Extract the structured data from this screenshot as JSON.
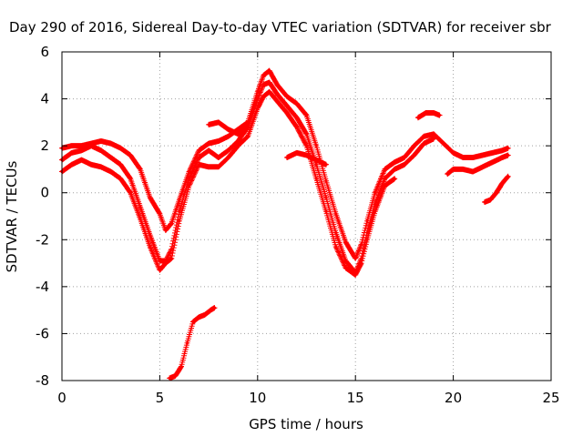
{
  "chart_data": {
    "type": "scatter",
    "title": "Day 290 of 2016, Sidereal Day-to-day VTEC variation (SDTVAR) for receiver sbr",
    "xlabel": "GPS time / hours",
    "ylabel": "SDTVAR / TECUs",
    "xlim": [
      0,
      25
    ],
    "ylim": [
      -8,
      6
    ],
    "xticks": [
      0,
      5,
      10,
      15,
      20,
      25
    ],
    "yticks": [
      -8,
      -6,
      -4,
      -2,
      0,
      2,
      4,
      6
    ],
    "grid": true,
    "legend": "none",
    "marker": "plus",
    "color": "#ff0000",
    "series": [
      {
        "x": [
          0.0,
          0.5,
          1.0,
          1.5,
          2.0,
          2.5,
          3.0,
          3.5,
          4.0,
          4.5,
          5.0,
          5.3,
          5.6,
          6.0,
          6.5,
          7.0,
          7.5,
          8.0,
          8.5,
          9.0,
          9.5,
          10.0,
          10.3,
          10.6,
          11.0,
          11.5,
          12.0,
          12.5,
          13.0,
          13.5,
          14.0,
          14.5,
          15.0,
          15.3,
          15.6,
          16.0,
          16.5,
          17.0,
          17.5,
          18.0,
          18.5,
          19.0,
          19.5,
          20.0,
          20.5,
          21.0,
          21.5,
          22.0,
          22.5,
          22.8
        ],
        "y": [
          1.9,
          2.0,
          2.0,
          2.1,
          2.2,
          2.1,
          1.9,
          1.6,
          1.0,
          -0.2,
          -0.9,
          -1.6,
          -1.3,
          -0.3,
          0.9,
          1.8,
          2.1,
          2.2,
          2.4,
          2.7,
          3.0,
          4.3,
          5.0,
          5.2,
          4.6,
          4.1,
          3.8,
          3.3,
          2.0,
          0.5,
          -0.9,
          -2.1,
          -2.8,
          -2.2,
          -1.2,
          0.0,
          1.0,
          1.3,
          1.5,
          2.0,
          2.4,
          2.5,
          2.1,
          1.7,
          1.5,
          1.5,
          1.6,
          1.7,
          1.8,
          1.9
        ]
      },
      {
        "x": [
          0.0,
          0.5,
          1.0,
          1.5,
          2.0,
          2.5,
          3.0,
          3.5,
          4.0,
          4.5,
          5.0,
          5.3,
          5.6,
          6.0,
          6.5,
          7.0,
          7.5,
          8.0,
          8.5,
          9.0,
          9.5,
          10.0,
          10.3,
          10.6,
          11.0,
          11.5,
          12.0,
          12.5,
          13.0,
          13.5,
          14.0,
          14.5,
          15.0,
          15.3,
          15.6,
          16.0,
          16.5,
          17.0,
          17.5,
          18.0,
          18.5,
          19.0
        ],
        "y": [
          1.4,
          1.7,
          1.8,
          2.0,
          1.8,
          1.5,
          1.2,
          0.6,
          -0.6,
          -1.8,
          -2.9,
          -2.9,
          -2.4,
          -0.8,
          0.6,
          1.5,
          1.8,
          1.5,
          1.8,
          2.2,
          2.8,
          4.0,
          4.6,
          4.7,
          4.2,
          3.7,
          3.2,
          2.5,
          1.2,
          -0.2,
          -1.7,
          -2.9,
          -3.4,
          -2.8,
          -1.7,
          -0.5,
          0.6,
          1.0,
          1.2,
          1.6,
          2.1,
          2.3
        ]
      },
      {
        "x": [
          0.0,
          0.5,
          1.0,
          1.5,
          2.0,
          2.5,
          3.0,
          3.5,
          4.0,
          4.5,
          5.0,
          5.3,
          5.6,
          6.0,
          6.5,
          7.0,
          7.5,
          8.0,
          8.5,
          9.0,
          9.5,
          10.0,
          10.3,
          10.6,
          11.0,
          11.5,
          12.0,
          12.5,
          13.0,
          13.5,
          14.0,
          14.5,
          15.0,
          15.3,
          15.6,
          16.0,
          16.5,
          17.0
        ],
        "y": [
          0.9,
          1.2,
          1.4,
          1.2,
          1.1,
          0.9,
          0.6,
          0.0,
          -1.1,
          -2.3,
          -3.3,
          -3.0,
          -2.8,
          -1.2,
          0.3,
          1.2,
          1.1,
          1.1,
          1.5,
          2.0,
          2.4,
          3.6,
          4.1,
          4.3,
          3.9,
          3.4,
          2.8,
          2.0,
          0.6,
          -0.8,
          -2.3,
          -3.2,
          -3.5,
          -3.0,
          -2.0,
          -0.8,
          0.3,
          0.6
        ]
      },
      {
        "x": [
          5.5,
          5.8,
          6.1,
          6.4,
          6.7,
          7.0,
          7.3,
          7.6,
          7.8
        ],
        "y": [
          -7.9,
          -7.8,
          -7.4,
          -6.4,
          -5.5,
          -5.3,
          -5.2,
          -5.0,
          -4.9
        ]
      },
      {
        "x": [
          7.5,
          8.0,
          8.5,
          9.0,
          9.5
        ],
        "y": [
          2.9,
          3.0,
          2.7,
          2.5,
          2.8
        ]
      },
      {
        "x": [
          11.5,
          12.0,
          12.5,
          13.0,
          13.5
        ],
        "y": [
          1.5,
          1.7,
          1.6,
          1.4,
          1.2
        ]
      },
      {
        "x": [
          18.2,
          18.6,
          19.0,
          19.3
        ],
        "y": [
          3.2,
          3.4,
          3.4,
          3.3
        ]
      },
      {
        "x": [
          19.7,
          20.0,
          20.5,
          21.0,
          21.5,
          22.0,
          22.5,
          22.8
        ],
        "y": [
          0.8,
          1.0,
          1.0,
          0.9,
          1.1,
          1.3,
          1.5,
          1.6
        ]
      },
      {
        "x": [
          21.6,
          21.9,
          22.2,
          22.5,
          22.8
        ],
        "y": [
          -0.4,
          -0.3,
          0.0,
          0.4,
          0.7
        ]
      }
    ]
  }
}
